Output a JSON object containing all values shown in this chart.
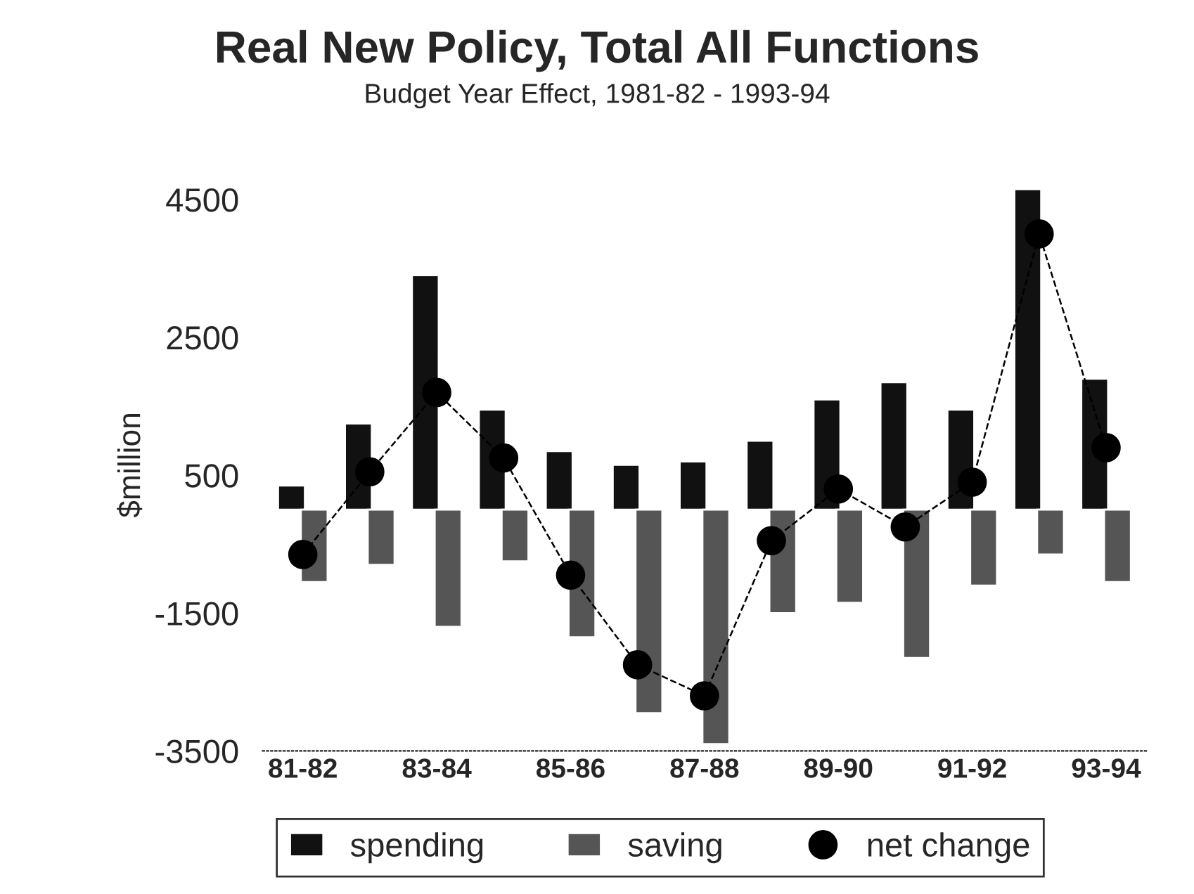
{
  "chart_data": {
    "type": "bar",
    "title": "Real New Policy, Total All Functions",
    "subtitle": "Budget Year Effect, 1981-82 - 1993-94",
    "ylabel": "$million",
    "categories": [
      "81-82",
      null,
      "83-84",
      null,
      "85-86",
      null,
      "87-88",
      null,
      "89-90",
      null,
      "91-92",
      null,
      "93-94"
    ],
    "series": [
      {
        "name": "spending",
        "color": "#111111",
        "values": [
          350,
          1250,
          3400,
          1450,
          850,
          650,
          700,
          1000,
          1600,
          1850,
          1450,
          4650,
          1900
        ]
      },
      {
        "name": "saving",
        "color": "#555555",
        "values": [
          -1050,
          -800,
          -1700,
          -750,
          -1850,
          -2950,
          -3400,
          -1500,
          -1350,
          -2150,
          -1100,
          -650,
          -1050
        ]
      },
      {
        "name": "net change",
        "type": "line",
        "color": "#000000",
        "marker": "circle",
        "line_style": "dashed",
        "values": [
          -650,
          550,
          1700,
          750,
          -950,
          -2250,
          -2700,
          -450,
          300,
          -250,
          400,
          4000,
          900
        ]
      }
    ],
    "ylim": [
      -3500,
      4800
    ],
    "yticks": [
      4500,
      2500,
      500,
      -1500,
      -3500
    ],
    "grid": false,
    "legend": "bottom"
  }
}
